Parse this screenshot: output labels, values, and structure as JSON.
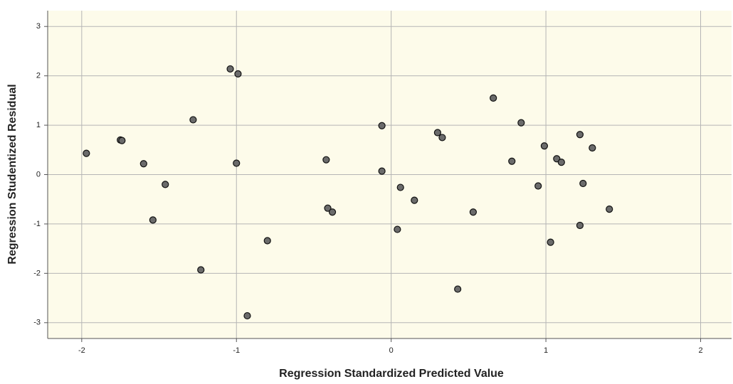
{
  "chart_data": {
    "type": "scatter",
    "x_label": "Regression Standardized Predicted Value",
    "y_label": "Regression Studentized Residual",
    "x": [
      -1.97,
      -1.75,
      -1.74,
      -1.6,
      -1.46,
      -1.54,
      -1.28,
      -1.23,
      -1.04,
      -0.99,
      -1.0,
      -0.8,
      -0.93,
      -0.42,
      -0.41,
      -0.38,
      -0.06,
      -0.06,
      0.06,
      0.04,
      0.15,
      0.3,
      0.33,
      0.43,
      0.53,
      0.66,
      0.78,
      0.84,
      0.95,
      0.99,
      1.03,
      1.07,
      1.1,
      1.22,
      1.22,
      1.24,
      1.3,
      1.41
    ],
    "values": [
      0.43,
      0.7,
      0.69,
      0.22,
      -0.2,
      -0.92,
      1.11,
      -1.93,
      2.14,
      2.04,
      0.23,
      -1.34,
      -2.86,
      0.3,
      -0.68,
      -0.76,
      0.99,
      0.07,
      -0.26,
      -1.11,
      -0.52,
      0.85,
      0.75,
      -2.32,
      -0.76,
      1.55,
      0.27,
      1.05,
      -0.23,
      0.58,
      -1.37,
      0.32,
      0.25,
      0.81,
      -1.03,
      -0.18,
      0.54,
      -0.7
    ],
    "color": "#6b6b6b",
    "xlim": [
      -2.22,
      2.2
    ],
    "xticks": [
      -2,
      -1,
      0,
      1,
      2
    ],
    "ylim": [
      -3.32,
      3.32
    ],
    "yticks": [
      -3,
      -2,
      -1,
      0,
      1,
      2,
      3
    ],
    "grid": true
  }
}
